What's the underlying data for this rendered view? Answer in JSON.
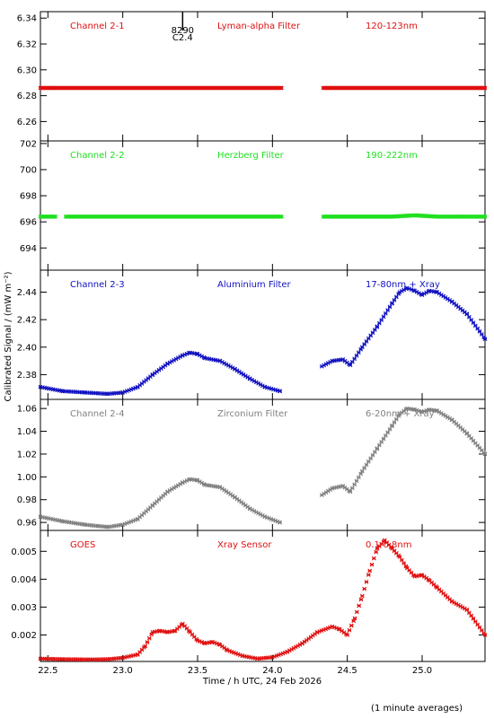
{
  "chart_data": {
    "type": "scatter",
    "xlabel": "Time / h UTC, 24 Feb 2026",
    "ylabel": "Calibrated Signal / (mW m⁻²)",
    "footnote": "(1 minute averages)",
    "xlim": [
      22.45,
      25.42
    ],
    "xticks": [
      22.5,
      23.0,
      23.5,
      24.0,
      24.5,
      25.0
    ],
    "xtick_labels": [
      "22.5",
      "23.0",
      "23.5",
      "24.0",
      "24.5",
      "25.0"
    ],
    "annotation": {
      "x": 23.4,
      "label_top": "8290",
      "label_bottom": "C2.4"
    },
    "panels": [
      {
        "channel": "Channel 2-1",
        "filter": "Lyman-alpha Filter",
        "band": "120-123nm",
        "color": "#e01010",
        "ylim": [
          6.245,
          6.345
        ],
        "yticks": [
          6.26,
          6.28,
          6.3,
          6.32,
          6.34
        ],
        "ytick_labels": [
          "6.26",
          "6.28",
          "6.30",
          "6.32",
          "6.34"
        ],
        "series": [
          {
            "x": [
              22.45,
              22.55,
              24.06
            ],
            "y": [
              6.286,
              6.286,
              6.286
            ]
          },
          {
            "x": [
              24.34,
              25.42
            ],
            "y": [
              6.286,
              6.286
            ]
          }
        ]
      },
      {
        "channel": "Channel 2-2",
        "filter": "Herzberg Filter",
        "band": "190-222nm",
        "color": "#20e020",
        "ylim": [
          692.3,
          702.2
        ],
        "yticks": [
          694,
          696,
          698,
          700,
          702
        ],
        "ytick_labels": [
          "694",
          "696",
          "698",
          "700",
          "702"
        ],
        "series": [
          {
            "x": [
              22.45,
              22.55
            ],
            "y": [
              696.4,
              696.4
            ]
          },
          {
            "x": [
              22.62,
              24.06
            ],
            "y": [
              696.4,
              696.4
            ]
          },
          {
            "x": [
              24.34,
              24.8,
              24.95,
              25.1,
              25.42
            ],
            "y": [
              696.4,
              696.4,
              696.5,
              696.4,
              696.4
            ]
          }
        ]
      },
      {
        "channel": "Channel 2-3",
        "filter": "Aluminium Filter",
        "band": "17-80nm + Xray",
        "color": "#1010c0",
        "ylim": [
          2.362,
          2.456
        ],
        "yticks": [
          2.38,
          2.4,
          2.42,
          2.44
        ],
        "ytick_labels": [
          "2.38",
          "2.40",
          "2.42",
          "2.44"
        ],
        "series": [
          {
            "x": [
              22.45,
              22.6,
              22.75,
              22.9,
              23.0,
              23.1,
              23.2,
              23.3,
              23.4,
              23.45,
              23.5,
              23.55,
              23.65,
              23.75,
              23.85,
              23.95,
              24.05
            ],
            "y": [
              2.371,
              2.368,
              2.367,
              2.366,
              2.367,
              2.371,
              2.38,
              2.388,
              2.394,
              2.396,
              2.395,
              2.392,
              2.39,
              2.384,
              2.377,
              2.371,
              2.368
            ]
          },
          {
            "x": [
              24.33,
              24.4,
              24.47,
              24.52,
              24.6,
              24.7,
              24.8,
              24.85,
              24.9,
              24.95,
              25.0,
              25.05,
              25.1,
              25.2,
              25.3,
              25.42
            ],
            "y": [
              2.386,
              2.39,
              2.391,
              2.387,
              2.4,
              2.415,
              2.432,
              2.44,
              2.443,
              2.441,
              2.438,
              2.441,
              2.44,
              2.433,
              2.424,
              2.406
            ]
          }
        ]
      },
      {
        "channel": "Channel 2-4",
        "filter": "Zirconium Filter",
        "band": "6-20nm + Xray",
        "color": "#808080",
        "ylim": [
          0.953,
          1.068
        ],
        "yticks": [
          0.96,
          0.98,
          1.0,
          1.02,
          1.04,
          1.06
        ],
        "ytick_labels": [
          "0.96",
          "0.98",
          "1.00",
          "1.02",
          "1.04",
          "1.06"
        ],
        "series": [
          {
            "x": [
              22.45,
              22.6,
              22.75,
              22.9,
              23.0,
              23.1,
              23.2,
              23.3,
              23.4,
              23.45,
              23.5,
              23.55,
              23.65,
              23.75,
              23.85,
              23.95,
              24.05
            ],
            "y": [
              0.965,
              0.961,
              0.958,
              0.956,
              0.958,
              0.963,
              0.975,
              0.987,
              0.995,
              0.998,
              0.997,
              0.993,
              0.991,
              0.982,
              0.972,
              0.965,
              0.96
            ]
          },
          {
            "x": [
              24.33,
              24.4,
              24.47,
              24.52,
              24.6,
              24.7,
              24.8,
              24.85,
              24.9,
              24.95,
              25.0,
              25.05,
              25.1,
              25.2,
              25.3,
              25.42
            ],
            "y": [
              0.984,
              0.99,
              0.992,
              0.987,
              1.005,
              1.025,
              1.045,
              1.055,
              1.06,
              1.059,
              1.057,
              1.059,
              1.058,
              1.05,
              1.038,
              1.02
            ]
          }
        ]
      },
      {
        "channel": "GOES",
        "filter": "Xray Sensor",
        "band": "0.1-0.8nm",
        "color": "#e01010",
        "ylim": [
          0.00105,
          0.00575
        ],
        "yticks": [
          0.002,
          0.003,
          0.004,
          0.005
        ],
        "ytick_labels": [
          "0.002",
          "0.003",
          "0.004",
          "0.005"
        ],
        "series": [
          {
            "x": [
              22.45,
              22.6,
              22.8,
              22.9,
              23.0,
              23.1,
              23.15,
              23.2,
              23.25,
              23.3,
              23.35,
              23.4,
              23.45,
              23.5,
              23.55,
              23.6,
              23.65,
              23.7,
              23.8,
              23.9,
              24.0,
              24.1,
              24.2,
              24.3,
              24.4,
              24.45,
              24.5,
              24.55,
              24.6,
              24.65,
              24.7,
              24.75,
              24.8,
              24.85,
              24.9,
              24.95,
              25.0,
              25.05,
              25.1,
              25.2,
              25.3,
              25.42
            ],
            "y": [
              0.00115,
              0.00113,
              0.00112,
              0.00113,
              0.00118,
              0.0013,
              0.0016,
              0.0021,
              0.00215,
              0.0021,
              0.00215,
              0.0024,
              0.0021,
              0.0018,
              0.0017,
              0.00175,
              0.00165,
              0.00145,
              0.00125,
              0.00115,
              0.0012,
              0.0014,
              0.0017,
              0.0021,
              0.0023,
              0.0022,
              0.002,
              0.0026,
              0.0034,
              0.0043,
              0.0051,
              0.0054,
              0.0051,
              0.0048,
              0.0044,
              0.0041,
              0.00415,
              0.00395,
              0.0037,
              0.0032,
              0.0029,
              0.002
            ]
          }
        ]
      }
    ]
  }
}
